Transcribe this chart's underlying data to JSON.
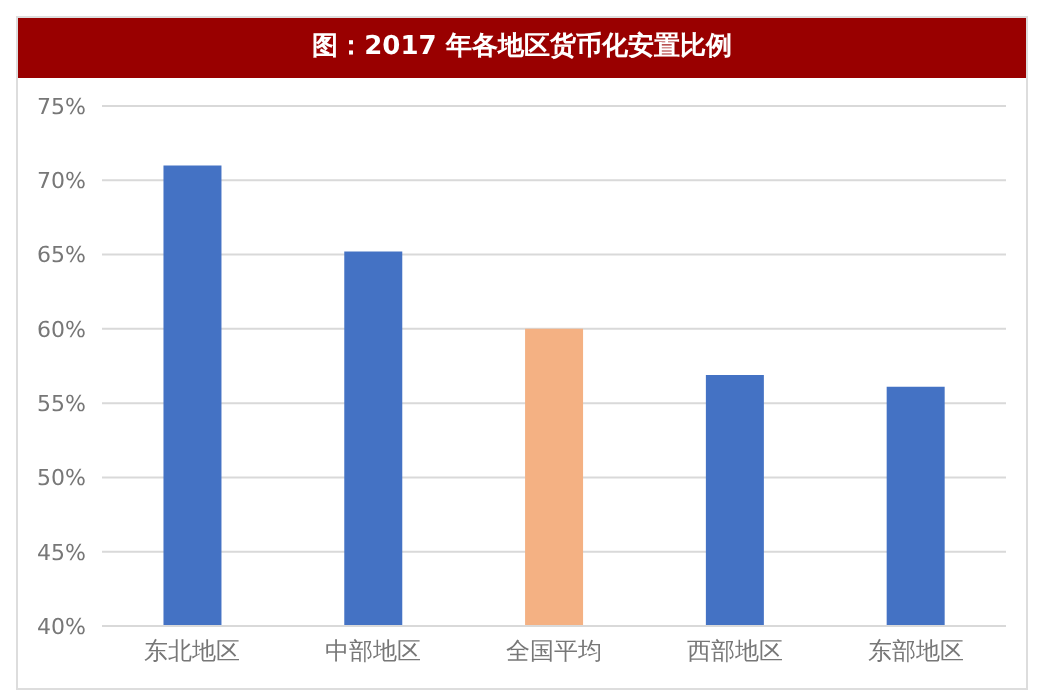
{
  "chart_data": {
    "type": "bar",
    "title": "图：2017 年各地区货币化安置比例",
    "categories": [
      "东北地区",
      "中部地区",
      "全国平均",
      "西部地区",
      "东部地区"
    ],
    "values": [
      71,
      65.2,
      60,
      56.9,
      56.1
    ],
    "colors": [
      "#4472c4",
      "#4472c4",
      "#f4b183",
      "#4472c4",
      "#4472c4"
    ],
    "ylim": [
      40,
      75
    ],
    "yticks": [
      {
        "value": 40,
        "label": "40%"
      },
      {
        "value": 45,
        "label": "45%"
      },
      {
        "value": 50,
        "label": "50%"
      },
      {
        "value": 55,
        "label": "55%"
      },
      {
        "value": 60,
        "label": "60%"
      },
      {
        "value": 65,
        "label": "65%"
      },
      {
        "value": 70,
        "label": "70%"
      },
      {
        "value": 75,
        "label": "75%"
      }
    ],
    "grid": "y",
    "legend": false
  }
}
